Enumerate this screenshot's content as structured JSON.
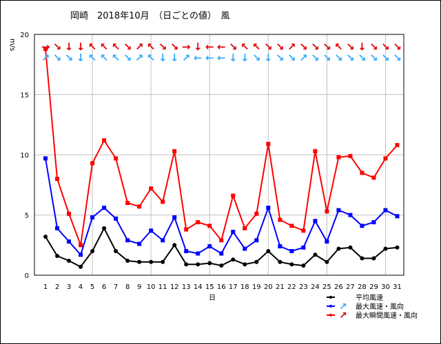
{
  "title": "岡崎　2018年10月　（日ごとの値）　風",
  "chart_data": {
    "type": "line",
    "title": "岡崎　2018年10月　（日ごとの値）　風",
    "xlabel": "日",
    "ylabel": "m/s",
    "ylim": [
      0,
      20
    ],
    "yticks": [
      "0",
      "5",
      "10",
      "15",
      "20"
    ],
    "categories": [
      "1",
      "2",
      "3",
      "4",
      "5",
      "6",
      "7",
      "8",
      "9",
      "10",
      "11",
      "12",
      "13",
      "14",
      "15",
      "16",
      "17",
      "18",
      "19",
      "20",
      "21",
      "22",
      "23",
      "24",
      "25",
      "26",
      "27",
      "28",
      "29",
      "30",
      "31"
    ],
    "grid": true,
    "legend_position": "bottom-right",
    "series": [
      {
        "name": "平均風速",
        "color": "#000000",
        "marker": "circle",
        "values": [
          3.2,
          1.6,
          1.2,
          0.7,
          2.0,
          3.9,
          2.0,
          1.2,
          1.1,
          1.1,
          1.1,
          2.5,
          0.9,
          0.9,
          1.0,
          0.8,
          1.3,
          0.9,
          1.1,
          2.0,
          1.1,
          0.9,
          0.8,
          1.7,
          1.1,
          2.2,
          2.3,
          1.4,
          1.4,
          2.2,
          2.3
        ]
      },
      {
        "name": "最大風速・風向",
        "color": "#0000ff",
        "marker": "square",
        "values": [
          9.7,
          3.9,
          2.8,
          1.7,
          4.8,
          5.6,
          4.7,
          2.9,
          2.6,
          3.7,
          2.9,
          4.8,
          2.0,
          1.8,
          2.4,
          1.8,
          3.6,
          2.2,
          2.9,
          5.6,
          2.4,
          2.0,
          2.3,
          4.5,
          2.8,
          5.4,
          5.0,
          4.1,
          4.4,
          5.4,
          4.9
        ],
        "direction_glyphs": [
          "↗",
          "↘",
          "↘",
          "↓",
          "↖",
          "↖",
          "↖",
          "↘",
          "↗",
          "↖",
          "↓",
          "↓",
          "↗",
          "←",
          "←",
          "←",
          "↓",
          "↓",
          "↘",
          "↓",
          "↘",
          "↘",
          "↗",
          "↘",
          "↘",
          "↘",
          "↘",
          "↘",
          "↘",
          "↘",
          "↘"
        ]
      },
      {
        "name": "最大瞬間風速・風向",
        "color": "#ff0000",
        "marker": "square",
        "values": [
          18.8,
          8.0,
          5.1,
          2.5,
          9.3,
          11.2,
          9.7,
          6.0,
          5.7,
          7.2,
          6.1,
          10.3,
          3.8,
          4.4,
          4.1,
          2.9,
          6.6,
          3.9,
          5.1,
          10.9,
          4.6,
          4.1,
          3.7,
          10.3,
          5.3,
          9.8,
          9.9,
          8.5,
          8.1,
          9.7,
          10.8
        ],
        "direction_glyphs": [
          "→",
          "↘",
          "↓",
          "↓",
          "↖",
          "↖",
          "↖",
          "↘",
          "↗",
          "↖",
          "↘",
          "↘",
          "→",
          "↓",
          "←",
          "←",
          "↘",
          "↖",
          "↖",
          "↘",
          "↘",
          "↗",
          "↘",
          "↘",
          "↘",
          "↖",
          "↘",
          "↓",
          "↘",
          "↘",
          "↘"
        ]
      }
    ]
  }
}
